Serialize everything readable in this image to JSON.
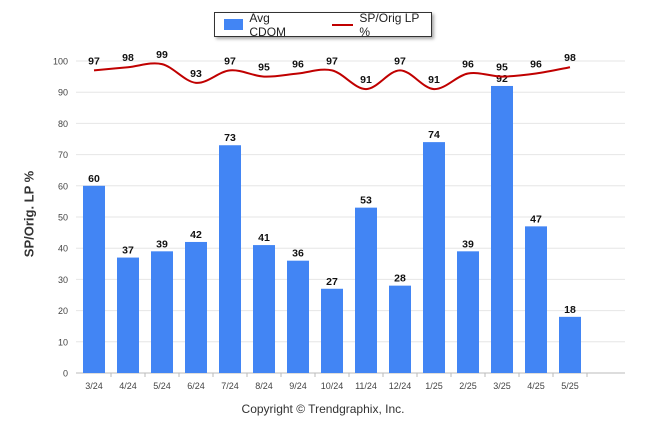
{
  "chart_data": {
    "type": "bar",
    "categories": [
      "3/24",
      "4/24",
      "5/24",
      "6/24",
      "7/24",
      "8/24",
      "9/24",
      "10/24",
      "11/24",
      "12/24",
      "1/25",
      "2/25",
      "3/25",
      "4/25",
      "5/25"
    ],
    "series": [
      {
        "name": "Avg CDOM",
        "type": "bar",
        "color": "#4285f4",
        "values": [
          60,
          37,
          39,
          42,
          73,
          41,
          36,
          27,
          53,
          28,
          74,
          39,
          92,
          47,
          18
        ]
      },
      {
        "name": "SP/Orig LP %",
        "type": "line",
        "color": "#c00000",
        "values": [
          97,
          98,
          99,
          93,
          97,
          95,
          96,
          97,
          91,
          97,
          91,
          96,
          95,
          96,
          98
        ]
      }
    ],
    "ylabel": "SP/Orig. LP %",
    "ylim": [
      0,
      100
    ],
    "yticks": [
      0,
      10,
      20,
      30,
      40,
      50,
      60,
      70,
      80,
      90,
      100
    ],
    "grid": true,
    "legend_position": "top"
  },
  "legend": {
    "bar_label": "Avg CDOM",
    "line_label": "SP/Orig LP %"
  },
  "footer": {
    "copyright": "Copyright © Trendgraphix, Inc."
  }
}
